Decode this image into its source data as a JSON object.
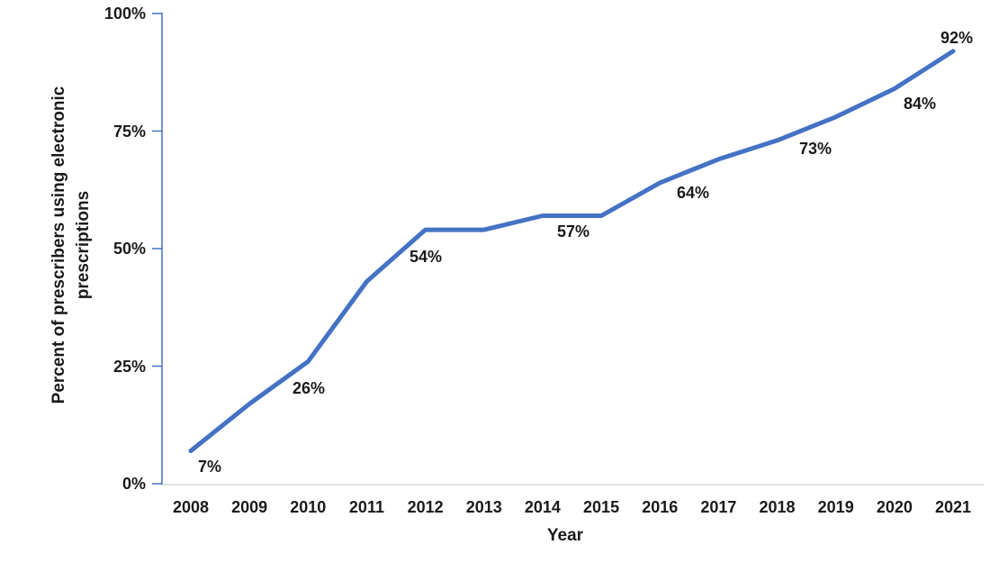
{
  "chart_data": {
    "type": "line",
    "title": "",
    "xlabel": "Year",
    "ylabel": "Percent of prescribers using electronic prescriptions",
    "categories": [
      "2008",
      "2009",
      "2010",
      "2011",
      "2012",
      "2013",
      "2014",
      "2015",
      "2016",
      "2017",
      "2018",
      "2019",
      "2020",
      "2021"
    ],
    "values": [
      7,
      17,
      26,
      43,
      54,
      54,
      57,
      57,
      64,
      69,
      73,
      78,
      84,
      92
    ],
    "data_labels": [
      "7%",
      "",
      "26%",
      "",
      "54%",
      "",
      "57%",
      "",
      "64%",
      "",
      "73%",
      "",
      "84%",
      "92%"
    ],
    "yticks": [
      "0%",
      "25%",
      "50%",
      "75%",
      "100%"
    ],
    "ylim": [
      0,
      100
    ],
    "grid": false,
    "legend": "none",
    "line_color": "#4472C4",
    "y_axis_color": "#4472C4",
    "x_axis_color": "#D9D9D9",
    "text_color": "#1a1a1a"
  }
}
